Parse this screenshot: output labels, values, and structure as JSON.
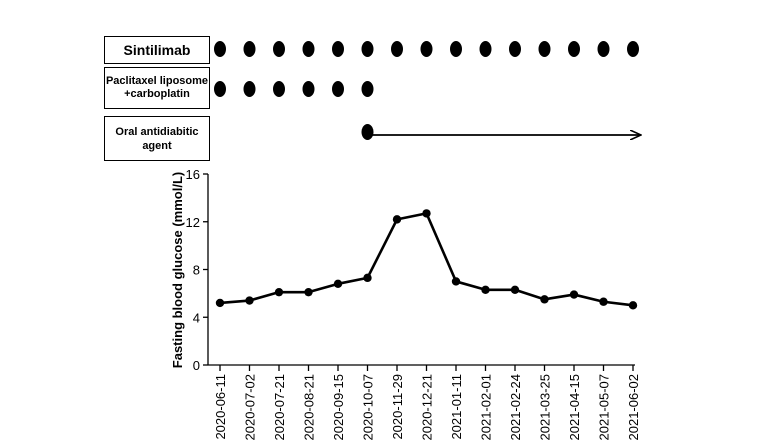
{
  "timeline": {
    "rows": [
      {
        "label_lines": [
          "Sintilimab"
        ],
        "dose_indices": [
          0,
          1,
          2,
          3,
          4,
          5,
          6,
          7,
          8,
          9,
          10,
          11,
          12,
          13,
          14
        ]
      },
      {
        "label_lines": [
          "Paclitaxel liposome",
          "+carboplatin"
        ],
        "dose_indices": [
          0,
          1,
          2,
          3,
          4,
          5
        ]
      },
      {
        "label_lines": [
          "Oral antidiabitic",
          "agent"
        ],
        "start_index": 5,
        "arrow_to_end": true
      }
    ]
  },
  "chart_data": {
    "type": "line",
    "title": "",
    "xlabel": "",
    "ylabel": "Fasting blood glucose (mmol/L)",
    "ylim": [
      0,
      16
    ],
    "yticks": [
      0,
      4,
      8,
      12,
      16
    ],
    "categories": [
      "2020-06-11",
      "2020-07-02",
      "2020-07-21",
      "2020-08-21",
      "2020-09-15",
      "2020-10-07",
      "2020-11-29",
      "2020-12-21",
      "2021-01-11",
      "2021-02-01",
      "2021-02-24",
      "2021-03-25",
      "2021-04-15",
      "2021-05-07",
      "2021-06-02"
    ],
    "series": [
      {
        "values": [
          5.2,
          5.4,
          6.1,
          6.1,
          6.8,
          7.3,
          12.2,
          12.7,
          7.0,
          6.3,
          6.3,
          5.5,
          5.9,
          5.3,
          5.0
        ]
      }
    ],
    "grid": false,
    "legend": "none"
  }
}
